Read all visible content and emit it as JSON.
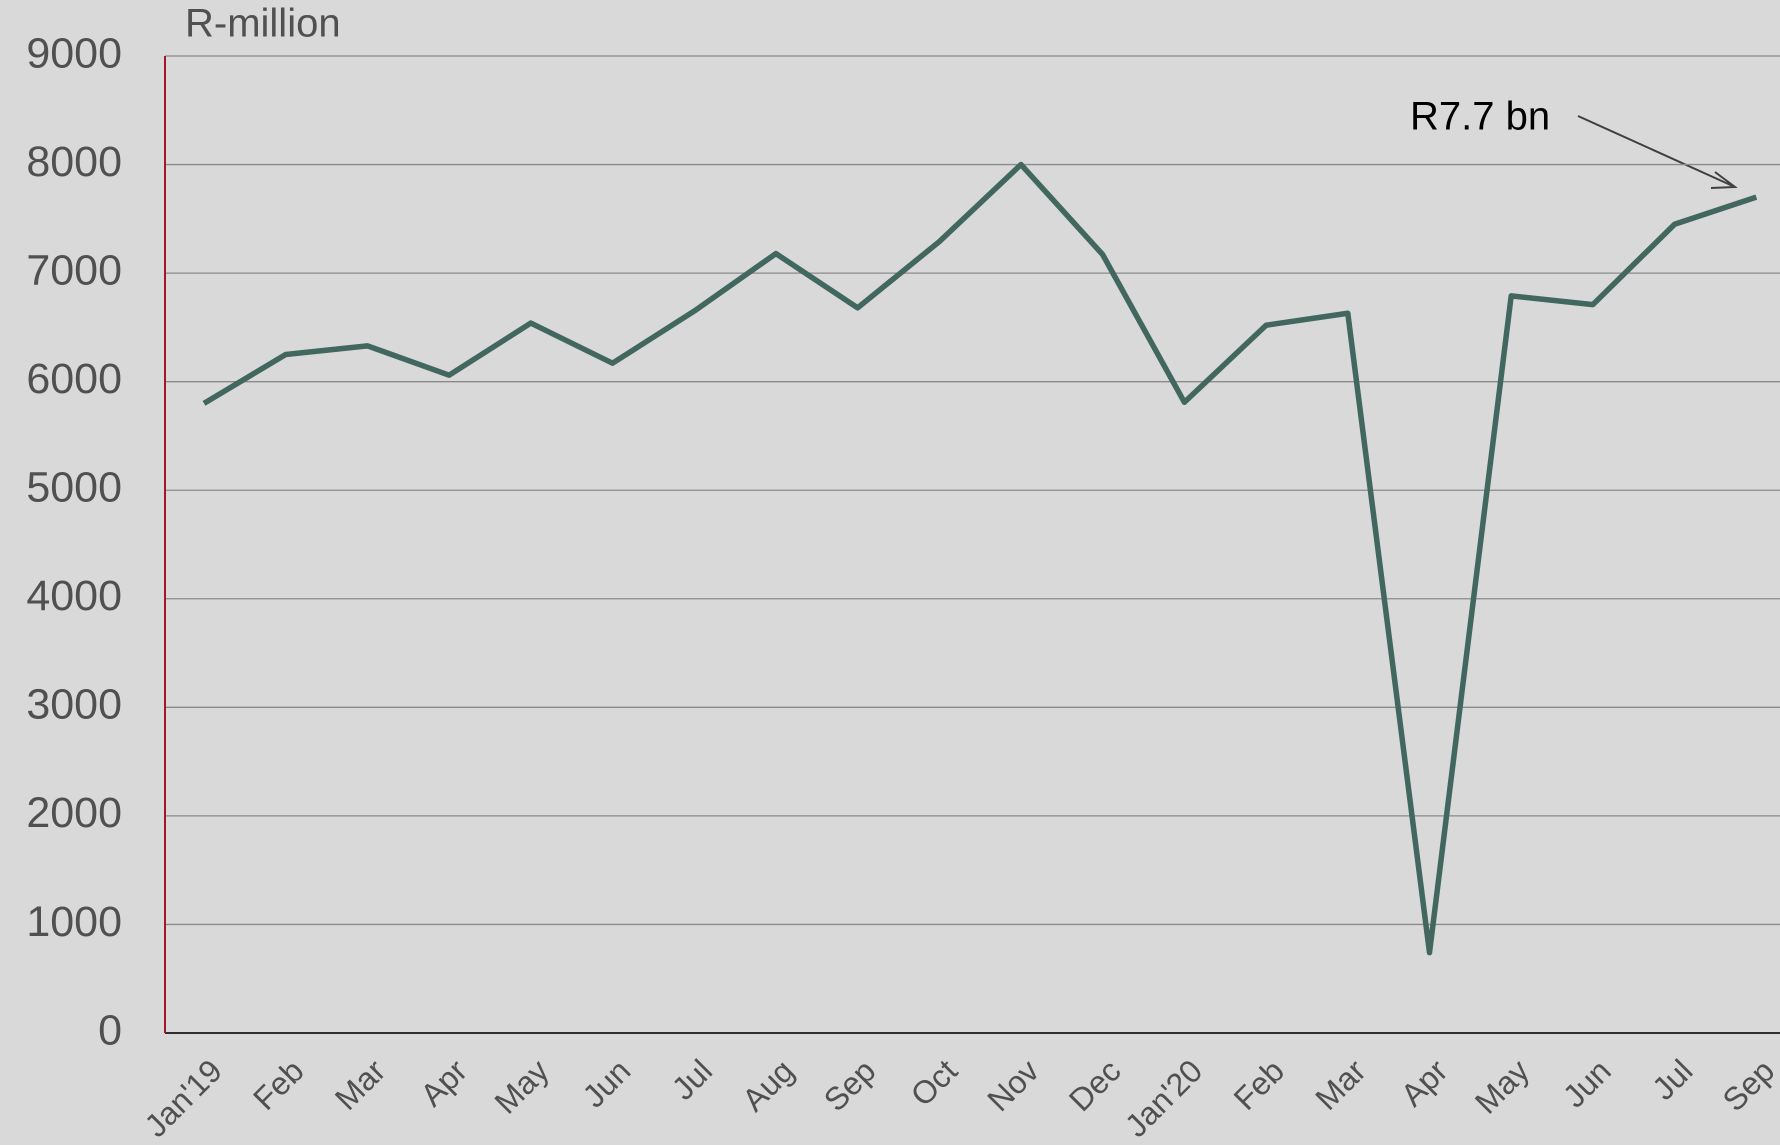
{
  "chart_data": {
    "type": "line",
    "y_axis_label": "R-million",
    "categories": [
      "Jan'19",
      "Feb",
      "Mar",
      "Apr",
      "May",
      "Jun",
      "Jul",
      "Aug",
      "Sep",
      "Oct",
      "Nov",
      "Dec",
      "Jan'20",
      "Feb",
      "Mar",
      "Apr",
      "May",
      "Jun",
      "Jul",
      "Sep"
    ],
    "series": [
      {
        "name": "R-million",
        "color": "#41675f",
        "values": [
          5800,
          6250,
          6330,
          6060,
          6540,
          6170,
          6650,
          7180,
          6680,
          7290,
          8000,
          7170,
          5810,
          6520,
          6630,
          740,
          6790,
          6710,
          7450,
          7700
        ]
      }
    ],
    "annotation": "R7.7 bn",
    "ylim": [
      0,
      9000
    ],
    "yticks": [
      0,
      1000,
      2000,
      3000,
      4000,
      5000,
      6000,
      7000,
      8000,
      9000
    ],
    "grid": true
  }
}
